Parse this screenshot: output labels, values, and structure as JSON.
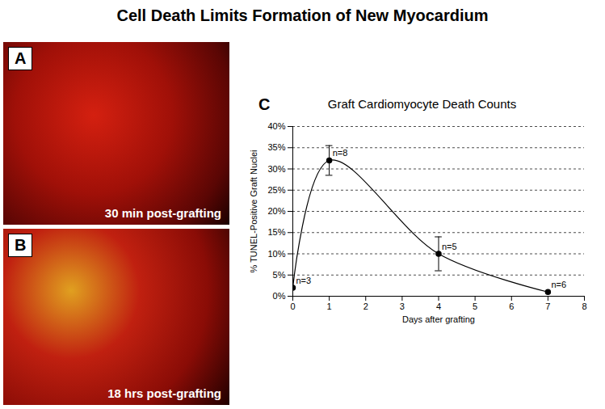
{
  "title": "Cell Death Limits Formation of New Myocardium",
  "panels": [
    {
      "label": "A",
      "caption": "30 min post-grafting"
    },
    {
      "label": "B",
      "caption": "18 hrs post-grafting"
    }
  ],
  "chart_data": {
    "type": "line",
    "panel_label": "C",
    "title": "Graft Cardiomyocyte Death Counts",
    "x_label": "Days after grafting",
    "y_label": "% TUNEL-Positive Graft Nuclei",
    "x": [
      0,
      1,
      4,
      7
    ],
    "values": [
      2,
      32,
      10,
      1
    ],
    "errors": [
      null,
      3.5,
      4,
      null
    ],
    "annotations": [
      "n=3",
      "n=8",
      "n=5",
      "n=6"
    ],
    "color": "#000000",
    "marker": "circle",
    "line_style": "solid",
    "grid": true,
    "xlim": [
      0,
      8
    ],
    "xticks": [
      0,
      1,
      2,
      3,
      4,
      5,
      6,
      7,
      8
    ],
    "ylim": [
      0,
      40
    ],
    "yticks": [
      {
        "value": 0,
        "label": "0%"
      },
      {
        "value": 5,
        "label": "5%"
      },
      {
        "value": 10,
        "label": "10%"
      },
      {
        "value": 15,
        "label": "15%"
      },
      {
        "value": 20,
        "label": "20%"
      },
      {
        "value": 25,
        "label": "25%"
      },
      {
        "value": 30,
        "label": "30%"
      },
      {
        "value": 35,
        "label": "35%"
      },
      {
        "value": 40,
        "label": "40%"
      }
    ]
  }
}
